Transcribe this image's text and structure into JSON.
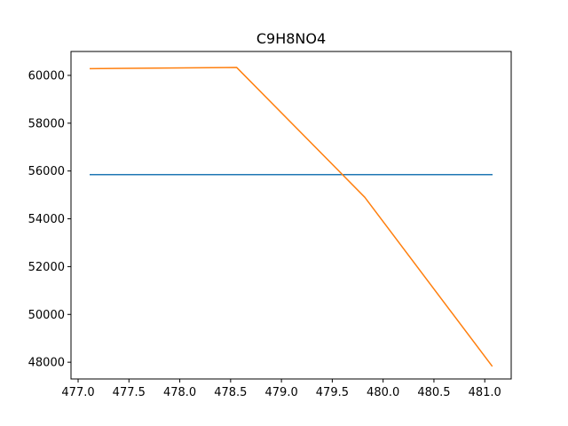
{
  "chart_data": {
    "type": "line",
    "title": "C9H8NO4",
    "xlabel": "",
    "ylabel": "",
    "xlim": [
      476.93,
      481.26
    ],
    "ylim": [
      47300,
      61000
    ],
    "xticks": [
      477.0,
      477.5,
      478.0,
      478.5,
      479.0,
      479.5,
      480.0,
      480.5,
      481.0
    ],
    "xtick_labels": [
      "477.0",
      "477.5",
      "478.0",
      "478.5",
      "479.0",
      "479.5",
      "480.0",
      "480.5",
      "481.0"
    ],
    "yticks": [
      48000,
      50000,
      52000,
      54000,
      56000,
      58000,
      60000
    ],
    "ytick_labels": [
      "48000",
      "50000",
      "52000",
      "54000",
      "56000",
      "58000",
      "60000"
    ],
    "grid": false,
    "series": [
      {
        "color": "#1f77b4",
        "x": [
          477.12,
          481.07
        ],
        "y": [
          55850,
          55850
        ]
      },
      {
        "color": "#ff7f0e",
        "x": [
          477.12,
          478.56,
          479.82,
          481.07
        ],
        "y": [
          60280,
          60330,
          54900,
          47850
        ]
      }
    ]
  }
}
